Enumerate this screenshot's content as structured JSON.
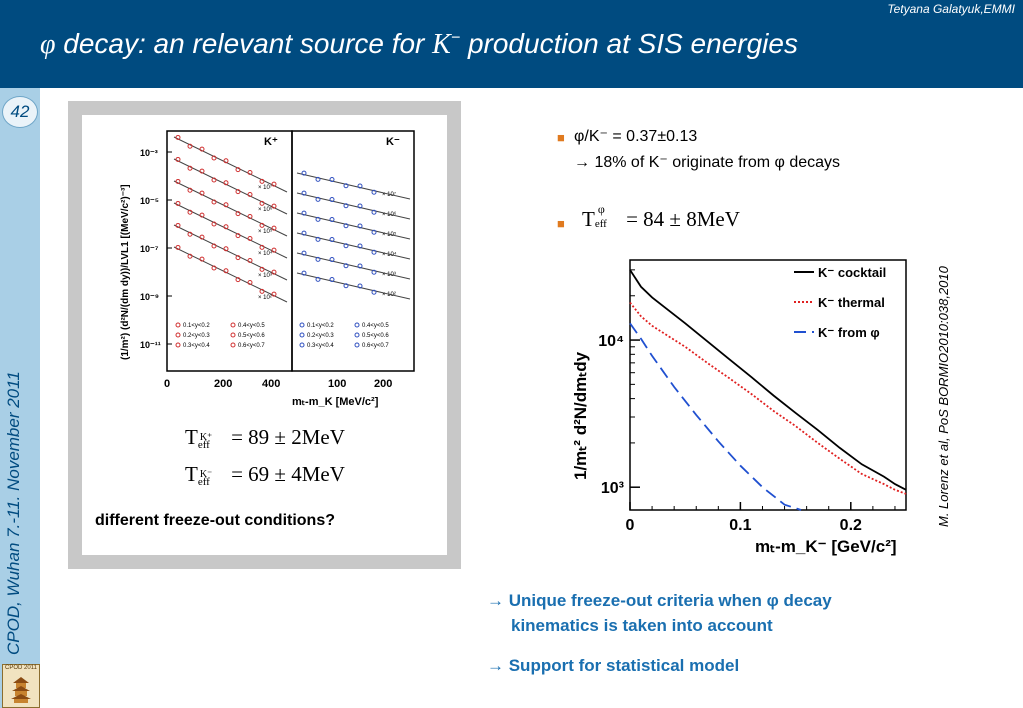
{
  "header": {
    "author": "Tetyana Galatyuk,EMMI",
    "title_phi": "φ",
    "title_mid": " decay: an relevant source for ",
    "title_K": "K",
    "title_minus": "−",
    "title_end": " production at SIS energies"
  },
  "sidebar": {
    "page_number": "42",
    "conference": "CPOD, Wuhan 7.-11. November 2011",
    "logo_text": "CPOD 2011"
  },
  "left_figure": {
    "panel_kplus_label": "K⁺",
    "panel_kminus_label": "K⁻",
    "y_axis_label": "(1/m²) (d²N/(dm dy))/LVL1 [(MeV/c²)⁻³]",
    "y_ticks": [
      "10⁻³",
      "10⁻⁵",
      "10⁻⁷",
      "10⁻⁹",
      "10⁻¹¹"
    ],
    "x_ticks_left": [
      "0",
      "200",
      "400"
    ],
    "x_ticks_right": [
      "100",
      "200"
    ],
    "x_axis_label": "mₜ-m_K  [MeV/c²]",
    "scale_factors_kplus": [
      "× 10⁷",
      "× 10⁶",
      "× 10⁵",
      "× 10⁴",
      "× 10³",
      "× 10²"
    ],
    "scale_factors_kminus": [
      "× 10⁷",
      "× 10⁶",
      "× 10⁵",
      "× 10⁴",
      "× 10³",
      "× 10²"
    ],
    "legend_left": [
      "0.1<y<0.2",
      "0.4<y<0.5",
      "0.2<y<0.3",
      "0.5<y<0.6",
      "0.3<y<0.4",
      "0.6<y<0.7"
    ],
    "legend_right": [
      "0.1<y<0.2",
      "0.4<y<0.5",
      "0.2<y<0.3",
      "0.5<y<0.6",
      "0.3<y<0.4",
      "0.6<y<0.7"
    ]
  },
  "equations": {
    "teff_kplus_T": "T",
    "teff_kplus_sup": "K⁺",
    "teff_kplus_sub": "eff",
    "teff_kplus_value": "= 89 ± 2MeV",
    "teff_kminus_T": "T",
    "teff_kminus_sup": "K⁻",
    "teff_kminus_sub": "eff",
    "teff_kminus_value": "= 69 ± 4MeV"
  },
  "question": "different freeze-out conditions?",
  "bullets": {
    "marker": "■",
    "ratio_line": "φ/K⁻ = 0.37±0.13",
    "fraction_line": "→ 18% of K⁻ originate from φ decays",
    "teff_phi_T": "T",
    "teff_phi_sup": "φ",
    "teff_phi_sub": "eff",
    "teff_phi_value": "= 84 ± 8MeV"
  },
  "reference": "M. Lorenz et al, PoS BORMIO2010:038,2010",
  "chart_data": {
    "type": "line",
    "xlabel": "mₜ-m_K⁻ [GeV/c²]",
    "ylabel": "1/mₜ² d²N/dmₜdy",
    "x_ticks": [
      "0",
      "0.1",
      "0.2"
    ],
    "y_ticks": [
      "10⁴",
      "10³"
    ],
    "xlim": [
      0,
      0.25
    ],
    "ylim": [
      700,
      35000
    ],
    "y_scale": "log",
    "legend_placement": "top-right",
    "series": [
      {
        "name": "K⁻ cocktail",
        "color": "#000000",
        "style": "solid",
        "x": [
          0,
          0.01,
          0.02,
          0.03,
          0.05,
          0.07,
          0.09,
          0.11,
          0.13,
          0.15,
          0.17,
          0.19,
          0.21,
          0.23,
          0.24,
          0.25
        ],
        "y": [
          30000,
          23000,
          19500,
          17000,
          13000,
          9800,
          7400,
          5600,
          4200,
          3200,
          2450,
          1850,
          1430,
          1180,
          1050,
          960
        ]
      },
      {
        "name": "K⁻ thermal",
        "color": "#e02020",
        "style": "dotted",
        "x": [
          0,
          0.01,
          0.02,
          0.03,
          0.05,
          0.07,
          0.09,
          0.11,
          0.13,
          0.15,
          0.17,
          0.19,
          0.21,
          0.23,
          0.24,
          0.25
        ],
        "y": [
          18000,
          14500,
          12500,
          11200,
          9000,
          7000,
          5500,
          4300,
          3300,
          2600,
          2000,
          1560,
          1230,
          1050,
          960,
          900
        ]
      },
      {
        "name": "K⁻ from φ",
        "color": "#2050d0",
        "style": "dashed",
        "x": [
          0,
          0.01,
          0.02,
          0.04,
          0.06,
          0.08,
          0.1,
          0.12,
          0.14,
          0.155
        ],
        "y": [
          13000,
          10200,
          7800,
          4800,
          3100,
          2050,
          1400,
          1000,
          760,
          620
        ]
      }
    ]
  },
  "conclusions": {
    "line1a": "→ Unique freeze-out criteria when φ decay",
    "line1b": "kinematics is taken into account",
    "line2": "→ Support for statistical model"
  }
}
